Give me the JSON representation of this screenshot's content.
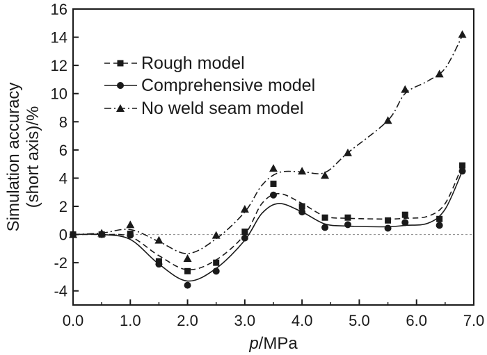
{
  "chart_data": {
    "type": "line",
    "xlabel_italic": "p",
    "xlabel_rest": "/MPa",
    "ylabel_line1": "Simulation accuracy",
    "ylabel_line2": "(short axis)/%",
    "xlim": [
      0.0,
      7.0
    ],
    "ylim": [
      -5,
      16
    ],
    "xticks": [
      "0.0",
      "1.0",
      "2.0",
      "3.0",
      "4.0",
      "5.0",
      "6.0",
      "7.0"
    ],
    "yticks": [
      "16",
      "14",
      "12",
      "10",
      "8",
      "6",
      "4",
      "2",
      "0",
      "-2",
      "-4"
    ],
    "reference_line_y": 0,
    "legend_position": "top-left",
    "series": [
      {
        "name": "Rough model",
        "marker": "square",
        "line": "dashed",
        "x": [
          0.0,
          0.5,
          1.0,
          1.5,
          2.0,
          2.5,
          3.0,
          3.5,
          4.0,
          4.4,
          4.8,
          5.5,
          5.8,
          6.4,
          6.8
        ],
        "y": [
          0.0,
          0.0,
          0.05,
          -1.9,
          -2.6,
          -2.0,
          0.2,
          3.6,
          2.0,
          1.2,
          1.2,
          1.0,
          1.4,
          1.1,
          4.9
        ],
        "curve_x": [
          0.0,
          0.5,
          1.0,
          1.5,
          2.0,
          2.5,
          3.0,
          3.3,
          3.6,
          4.0,
          4.4,
          4.8,
          5.5,
          5.8,
          6.2,
          6.5,
          6.8
        ],
        "curve_y": [
          0.0,
          0.0,
          -0.15,
          -1.5,
          -2.5,
          -1.8,
          0.0,
          2.2,
          2.9,
          2.2,
          1.3,
          1.15,
          1.1,
          1.15,
          1.3,
          2.2,
          4.9
        ]
      },
      {
        "name": "Comprehensive model",
        "marker": "circle",
        "line": "solid",
        "x": [
          0.0,
          0.5,
          1.0,
          1.5,
          2.0,
          2.5,
          3.0,
          3.5,
          4.0,
          4.4,
          4.8,
          5.5,
          5.8,
          6.4,
          6.8
        ],
        "y": [
          0.0,
          0.0,
          -0.05,
          -2.1,
          -3.6,
          -2.6,
          -0.25,
          2.8,
          1.6,
          0.5,
          0.7,
          0.45,
          0.85,
          0.65,
          4.5
        ],
        "curve_x": [
          0.0,
          0.5,
          1.0,
          1.5,
          2.0,
          2.5,
          3.0,
          3.3,
          3.6,
          4.0,
          4.4,
          4.8,
          5.5,
          5.8,
          6.2,
          6.5,
          6.8
        ],
        "curve_y": [
          0.0,
          0.0,
          -0.35,
          -2.1,
          -3.3,
          -2.4,
          -0.4,
          1.5,
          2.2,
          1.6,
          0.75,
          0.6,
          0.55,
          0.65,
          0.8,
          1.8,
          4.5
        ]
      },
      {
        "name": "No weld seam model",
        "marker": "triangle",
        "line": "dash-dot",
        "x": [
          0.0,
          0.5,
          1.0,
          1.5,
          2.0,
          2.5,
          3.0,
          3.5,
          4.0,
          4.4,
          4.8,
          5.5,
          5.8,
          6.4,
          6.8
        ],
        "y": [
          0.0,
          0.1,
          0.7,
          -0.4,
          -1.7,
          -0.05,
          1.8,
          4.7,
          4.5,
          4.2,
          5.8,
          8.1,
          10.3,
          11.4,
          14.2
        ],
        "curve_x": [
          0.0,
          0.5,
          1.0,
          1.5,
          2.0,
          2.5,
          3.0,
          3.3,
          3.6,
          4.0,
          4.4,
          4.8,
          5.5,
          5.8,
          6.2,
          6.5,
          6.8
        ],
        "curve_y": [
          0.0,
          0.1,
          0.35,
          -0.5,
          -1.35,
          -0.3,
          1.6,
          3.5,
          4.4,
          4.45,
          4.4,
          5.8,
          8.1,
          10.0,
          10.9,
          11.8,
          14.1
        ]
      }
    ]
  }
}
